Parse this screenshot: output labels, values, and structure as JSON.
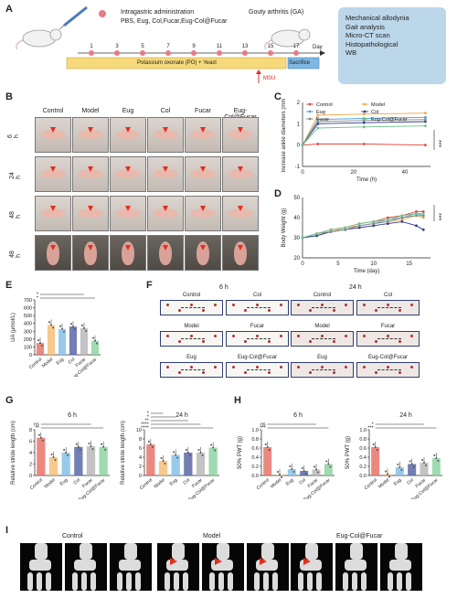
{
  "panel_a": {
    "letter": "A",
    "admin_title": "Intragastric administration",
    "admin_groups": "PBS, Eug, Col,Fucar,Eug-Col@Fucar",
    "ga_label": "Gouty arthritis (GA)",
    "day_ticks": [
      "1",
      "3",
      "5",
      "7",
      "9",
      "11",
      "13",
      "15",
      "17"
    ],
    "day_label": "Day",
    "treatment_bar": "Potassium oxonate (PO) + Yeast",
    "sacrifice": "Sacrifice",
    "msu": "MSU",
    "assays": [
      "Mechanical allodynia",
      "Gait analysis",
      "Micro-CT scan",
      "Histopathological",
      "WB"
    ]
  },
  "panel_b": {
    "letter": "B",
    "columns": [
      "Control",
      "Model",
      "Eug",
      "Col",
      "Fucar",
      "Eug-Col@Fucar"
    ],
    "rows": [
      "6 h",
      "24 h",
      "48 h",
      "48 h"
    ]
  },
  "panel_c": {
    "letter": "C",
    "chart_data": {
      "type": "line",
      "ylabel": "Increase ankle diameters (mm)",
      "xlabel": "Time (h)",
      "x": [
        0,
        6,
        24,
        48
      ],
      "ylim": [
        -1,
        2
      ],
      "yticks": [
        "-1",
        "0",
        "1",
        "2"
      ],
      "xticks": [
        "0",
        "20",
        "40"
      ],
      "series": [
        {
          "name": "Control",
          "color": "#e04a3c",
          "values": [
            0,
            0.05,
            0.05,
            0.0
          ]
        },
        {
          "name": "Model",
          "color": "#f4a640",
          "values": [
            0,
            1.4,
            1.45,
            1.5
          ]
        },
        {
          "name": "Eug",
          "color": "#4aa0d8",
          "values": [
            0,
            1.2,
            1.25,
            1.3
          ]
        },
        {
          "name": "Col",
          "color": "#2e3d8c",
          "values": [
            0,
            1.0,
            1.05,
            1.1
          ]
        },
        {
          "name": "Fucar",
          "color": "#8a8a8a",
          "values": [
            0,
            1.1,
            1.15,
            1.2
          ]
        },
        {
          "name": "Eug-Col@Fucar",
          "color": "#6cc48a",
          "values": [
            0,
            0.8,
            0.85,
            0.9
          ]
        }
      ],
      "significance": "***"
    }
  },
  "panel_d": {
    "letter": "D",
    "chart_data": {
      "type": "line",
      "ylabel": "Body Weight (g)",
      "xlabel": "Time (day)",
      "x": [
        0,
        2,
        4,
        6,
        8,
        10,
        12,
        14,
        16,
        17
      ],
      "ylim": [
        20,
        50
      ],
      "yticks": [
        "20",
        "30",
        "40",
        "50"
      ],
      "xticks": [
        "0",
        "5",
        "10",
        "15"
      ],
      "series": [
        {
          "name": "Control",
          "color": "#e04a3c",
          "values": [
            30,
            32,
            34,
            35,
            37,
            38,
            40,
            41,
            43,
            43
          ]
        },
        {
          "name": "Model",
          "color": "#f4a640",
          "values": [
            30,
            32,
            33,
            35,
            36,
            37,
            38,
            39,
            41,
            40
          ]
        },
        {
          "name": "Eug",
          "color": "#4aa0d8",
          "values": [
            30,
            31,
            33,
            34,
            36,
            37,
            39,
            40,
            42,
            41
          ]
        },
        {
          "name": "Col",
          "color": "#2e3d8c",
          "values": [
            30,
            31,
            33,
            34,
            35,
            36,
            37,
            38,
            36,
            34
          ]
        },
        {
          "name": "Fucar",
          "color": "#8a8a8a",
          "values": [
            30,
            32,
            33,
            34,
            36,
            37,
            38,
            40,
            41,
            41
          ]
        },
        {
          "name": "Eug-Col@Fucar",
          "color": "#6cc48a",
          "values": [
            30,
            32,
            34,
            35,
            37,
            38,
            39,
            41,
            42,
            42
          ]
        }
      ],
      "significance": "***"
    }
  },
  "panel_e": {
    "letter": "E",
    "chart_data": {
      "type": "bar",
      "ylabel": "UA (μmol/L)",
      "categories": [
        "Control",
        "Model",
        "Eug",
        "Col",
        "Fucar",
        "Eug-Col@Fucar"
      ],
      "values": [
        150,
        380,
        330,
        360,
        340,
        180
      ],
      "ylim": [
        0,
        700
      ],
      "yticks": [
        "0",
        "100",
        "200",
        "300",
        "400",
        "500",
        "600",
        "700"
      ],
      "colors": [
        "#e8746a",
        "#f6c07a",
        "#86c2e8",
        "#5a67a8",
        "#b8b8b8",
        "#8ed4a2"
      ],
      "significance": [
        "*",
        "*"
      ]
    }
  },
  "panel_f": {
    "letter": "F",
    "time_left": "6 h",
    "time_right": "24 h",
    "labels": [
      [
        "Control",
        "Col"
      ],
      [
        "Model",
        "Fucar"
      ],
      [
        "Eug",
        "Eug-Col@Fucar"
      ]
    ]
  },
  "panel_g": {
    "letter": "G",
    "chart_data": [
      {
        "type": "bar",
        "title": "6 h",
        "ylabel": "Relative stride length (cm)",
        "categories": [
          "Control",
          "Model",
          "Eug",
          "Col",
          "Fucar",
          "Eug-Col@Fucar"
        ],
        "values": [
          6.6,
          3.2,
          4.0,
          5.0,
          5.1,
          5.0
        ],
        "ylim": [
          0,
          8
        ],
        "yticks": [
          "0",
          "2",
          "4",
          "6",
          "8"
        ],
        "colors": [
          "#e8746a",
          "#f6c07a",
          "#86c2e8",
          "#5a67a8",
          "#b8b8b8",
          "#8ed4a2"
        ],
        "significance": [
          "**",
          "ns"
        ]
      },
      {
        "type": "bar",
        "title": "24 h",
        "ylabel": "Relative stride length (cm)",
        "categories": [
          "Control",
          "Model",
          "Eug",
          "Col",
          "Fucar",
          "Eug-Col@Fucar"
        ],
        "values": [
          6.8,
          3.2,
          4.5,
          5.0,
          5.0,
          6.1
        ],
        "ylim": [
          0,
          10
        ],
        "yticks": [
          "0",
          "2",
          "4",
          "6",
          "8",
          "10"
        ],
        "colors": [
          "#e8746a",
          "#f6c07a",
          "#86c2e8",
          "#5a67a8",
          "#b8b8b8",
          "#8ed4a2"
        ],
        "significance": [
          "****",
          "****",
          "**",
          "*",
          "*"
        ]
      }
    ]
  },
  "panel_h": {
    "letter": "H",
    "chart_data": [
      {
        "type": "bar",
        "title": "6 h",
        "ylabel": "50% PWT (g)",
        "categories": [
          "Control",
          "Model",
          "Eug",
          "Col",
          "Fucar",
          "Eug-Col@Fucar"
        ],
        "values": [
          0.62,
          0.02,
          0.14,
          0.1,
          0.13,
          0.25
        ],
        "ylim": [
          0,
          1.0
        ],
        "yticks": [
          "0.0",
          "0.2",
          "0.4",
          "0.6",
          "0.8",
          "1.0"
        ],
        "colors": [
          "#e8746a",
          "#f6c07a",
          "#86c2e8",
          "#5a67a8",
          "#b8b8b8",
          "#8ed4a2"
        ],
        "significance": [
          "***",
          "ns"
        ]
      },
      {
        "type": "bar",
        "title": "24 h",
        "ylabel": "50% PWT (g)",
        "categories": [
          "Control",
          "Model",
          "Eug",
          "Col",
          "Fucar",
          "Eug-Col@Fucar"
        ],
        "values": [
          0.62,
          0.03,
          0.18,
          0.25,
          0.28,
          0.38
        ],
        "ylim": [
          0,
          1.0
        ],
        "yticks": [
          "0.0",
          "0.2",
          "0.4",
          "0.6",
          "0.8",
          "1.0"
        ],
        "colors": [
          "#e8746a",
          "#f6c07a",
          "#86c2e8",
          "#5a67a8",
          "#b8b8b8",
          "#8ed4a2"
        ],
        "significance": [
          "***",
          "*"
        ]
      }
    ]
  },
  "panel_i": {
    "letter": "I",
    "groups": [
      "Control",
      "Model",
      "Eug-Col@Fucar"
    ]
  }
}
